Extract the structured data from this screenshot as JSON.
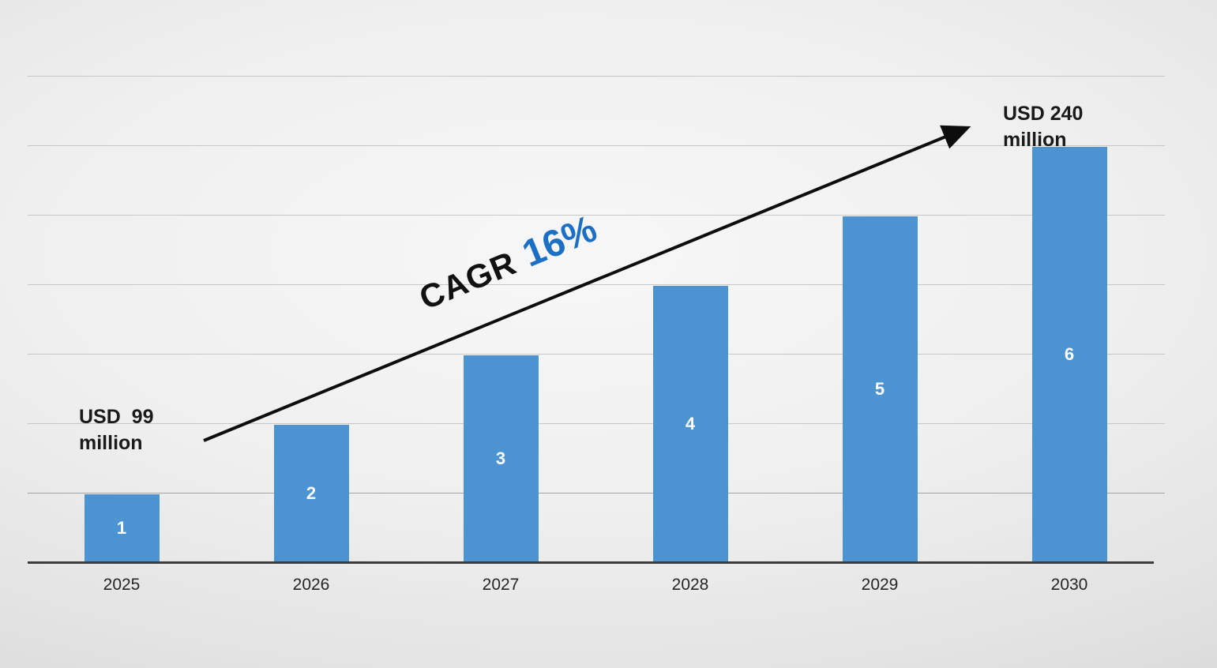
{
  "chart_data": {
    "type": "bar",
    "title": "",
    "xlabel": "",
    "ylabel": "",
    "categories": [
      "2025",
      "2026",
      "2027",
      "2028",
      "2029",
      "2030"
    ],
    "values": [
      1,
      2,
      3,
      4,
      5,
      6
    ],
    "bar_labels": [
      "1",
      "2",
      "3",
      "4",
      "5",
      "6"
    ],
    "ylim": [
      0,
      7
    ],
    "gridlines_every": 1,
    "gridline_count": 7,
    "legend": "none",
    "annotations": {
      "start_value_line1": "USD  99",
      "start_value_line2": "million",
      "end_value_line1": "USD 240",
      "end_value_line2": "million",
      "cagr_label": "CAGR",
      "cagr_value": "16%"
    },
    "colors": {
      "bar": "#4b93d1",
      "bar_label": "#ffffff",
      "cagr_value_text": "#1b6fc4",
      "cagr_label_text": "#111111",
      "annotation_text": "#1a1a1a",
      "axis_line": "#3c3c3c",
      "gridline": "#c7c7c7",
      "arrow": "#0d0d0d"
    }
  }
}
